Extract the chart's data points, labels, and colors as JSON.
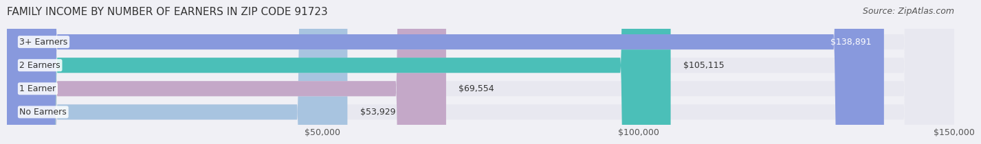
{
  "title": "FAMILY INCOME BY NUMBER OF EARNERS IN ZIP CODE 91723",
  "source": "Source: ZipAtlas.com",
  "categories": [
    "No Earners",
    "1 Earner",
    "2 Earners",
    "3+ Earners"
  ],
  "values": [
    53929,
    69554,
    105115,
    138891
  ],
  "bar_colors": [
    "#a8c4e0",
    "#c4a8c8",
    "#4bbfb8",
    "#8899dd"
  ],
  "label_colors": [
    "#333333",
    "#333333",
    "#333333",
    "#ffffff"
  ],
  "value_labels": [
    "$53,929",
    "$69,554",
    "$105,115",
    "$138,891"
  ],
  "xlim": [
    0,
    150000
  ],
  "xticks": [
    50000,
    100000,
    150000
  ],
  "xtick_labels": [
    "$50,000",
    "$100,000",
    "$150,000"
  ],
  "background_color": "#f0f0f5",
  "bar_background_color": "#e8e8f0",
  "title_fontsize": 11,
  "source_fontsize": 9,
  "tick_fontsize": 9,
  "label_fontsize": 9,
  "value_fontsize": 9,
  "bar_height": 0.65,
  "bar_gap": 0.15
}
